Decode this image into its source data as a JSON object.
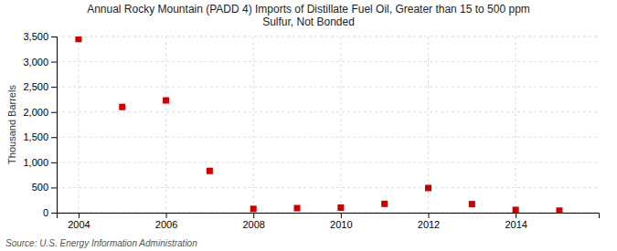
{
  "chart_data": {
    "type": "scatter",
    "title": "Annual Rocky Mountain (PADD 4) Imports of Distillate Fuel Oil, Greater than 15 to 500 ppm\nSulfur, Not Bonded",
    "ylabel": "Thousand Barrels",
    "annotations": [
      "Source: U.S. Energy Information Administration"
    ],
    "x": [
      2004,
      2005,
      2006,
      2007,
      2008,
      2009,
      2010,
      2011,
      2012,
      2013,
      2014,
      2015
    ],
    "values": [
      3450,
      2100,
      2230,
      830,
      75,
      90,
      100,
      175,
      490,
      170,
      55,
      40
    ],
    "color": "#cc0000",
    "marker": "square",
    "xlim": [
      2003.5,
      2015.9
    ],
    "xticks": [
      2004,
      2006,
      2008,
      2010,
      2012,
      2014
    ],
    "ylim": [
      0,
      3500
    ],
    "yticks": [
      0,
      500,
      {
        "value": 1000,
        "label": "1,000"
      },
      {
        "value": 1500,
        "label": "1,500"
      },
      {
        "value": 2000,
        "label": "2,000"
      },
      {
        "value": 2500,
        "label": "2,500"
      },
      {
        "value": 3000,
        "label": "3,000"
      },
      {
        "value": 3500,
        "label": "3,500"
      }
    ],
    "grid": true
  }
}
